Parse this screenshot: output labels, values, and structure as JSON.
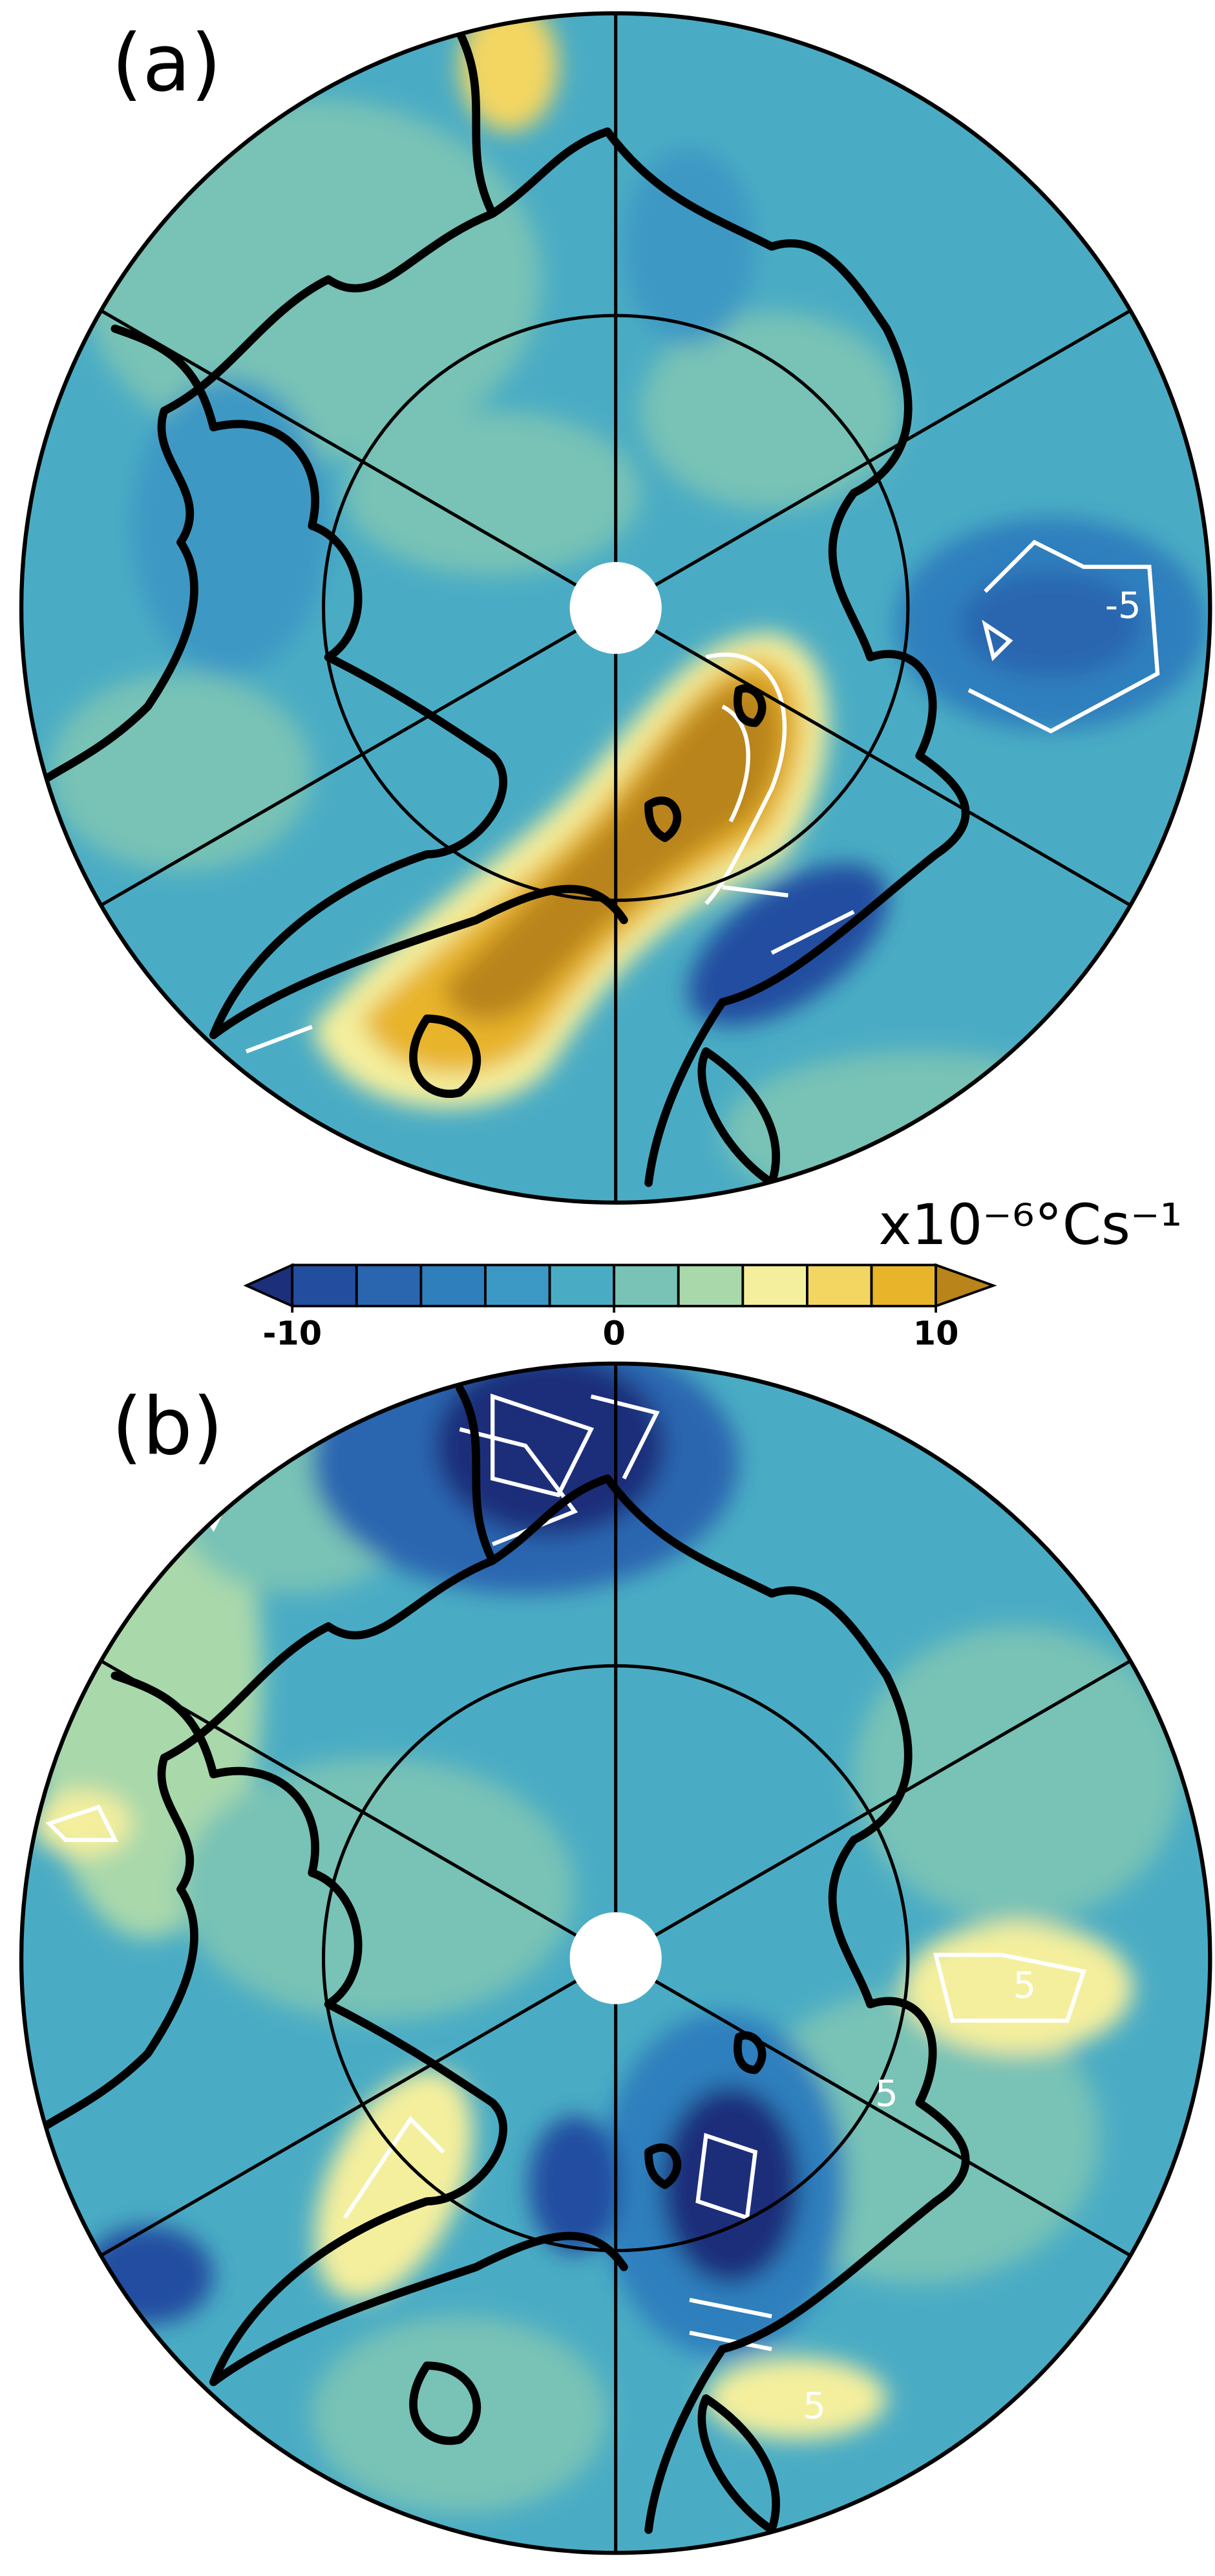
{
  "panels": [
    {
      "label": "(a)",
      "contour_labels": [
        "-5"
      ]
    },
    {
      "label": "(b)",
      "contour_labels": [
        "5",
        "5",
        "5"
      ]
    }
  ],
  "colorbar": {
    "unit": "x10⁻⁶°Cs⁻¹",
    "levels": [
      -10,
      -8,
      -6,
      -4,
      -2,
      0,
      2,
      4,
      6,
      8,
      10
    ],
    "colors": [
      "#1c2f7a",
      "#234ea0",
      "#2a66b0",
      "#2f7fbd",
      "#3c98c4",
      "#4aacc4",
      "#78c2b6",
      "#a9d8ab",
      "#f4ef9d",
      "#f3d662",
      "#e8b429",
      "#b9841a"
    ],
    "ticks": [
      -10,
      0,
      10
    ]
  }
}
